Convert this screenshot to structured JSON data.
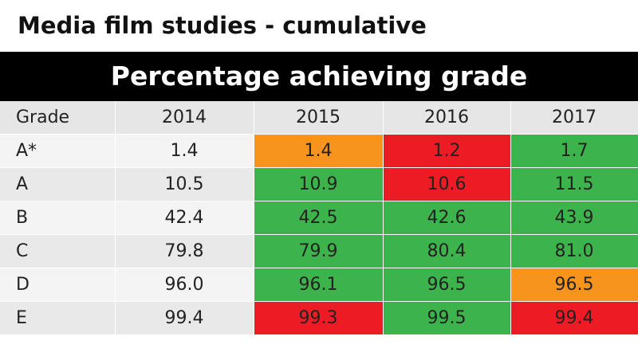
{
  "title": "Media film studies - cumulative",
  "banner": "Percentage achieving grade",
  "table": {
    "header": [
      "Grade",
      "2014",
      "2015",
      "2016",
      "2017"
    ],
    "rows": [
      {
        "grade": "A*",
        "values": [
          "1.4",
          "1.4",
          "1.2",
          "1.7"
        ],
        "colors": [
          "none",
          "orange",
          "red",
          "green"
        ]
      },
      {
        "grade": "A",
        "values": [
          "10.5",
          "10.9",
          "10.6",
          "11.5"
        ],
        "colors": [
          "none",
          "green",
          "red",
          "green"
        ]
      },
      {
        "grade": "B",
        "values": [
          "42.4",
          "42.5",
          "42.6",
          "43.9"
        ],
        "colors": [
          "none",
          "green",
          "green",
          "green"
        ]
      },
      {
        "grade": "C",
        "values": [
          "79.8",
          "79.9",
          "80.4",
          "81.0"
        ],
        "colors": [
          "none",
          "green",
          "green",
          "green"
        ]
      },
      {
        "grade": "D",
        "values": [
          "96.0",
          "96.1",
          "96.5",
          "96.5"
        ],
        "colors": [
          "none",
          "green",
          "green",
          "orange"
        ]
      },
      {
        "grade": "E",
        "values": [
          "99.4",
          "99.3",
          "99.5",
          "99.4"
        ],
        "colors": [
          "none",
          "red",
          "green",
          "red"
        ]
      }
    ]
  },
  "colors": {
    "green": "#3db44b",
    "orange": "#f7941d",
    "red": "#ed1c24",
    "banner": "#000000"
  }
}
